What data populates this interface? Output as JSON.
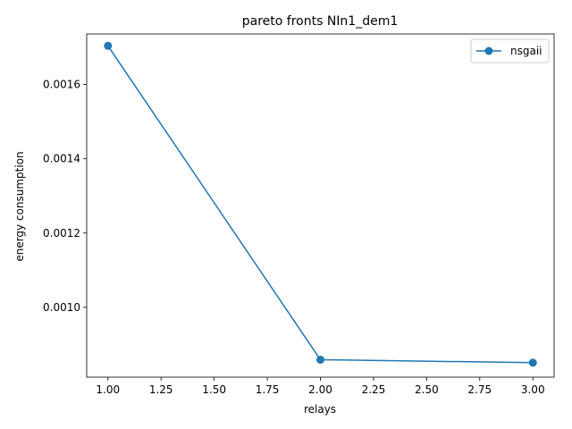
{
  "chart_data": {
    "type": "line",
    "title": "pareto fronts NIn1_dem1",
    "xlabel": "relays",
    "ylabel": "energy consumption",
    "xlim": [
      0.9,
      3.1
    ],
    "ylim": [
      0.000812,
      0.001736
    ],
    "xticks": [
      1.0,
      1.25,
      1.5,
      1.75,
      2.0,
      2.25,
      2.5,
      2.75,
      3.0
    ],
    "xtick_labels": [
      "1.00",
      "1.25",
      "1.50",
      "1.75",
      "2.00",
      "2.25",
      "2.50",
      "2.75",
      "3.00"
    ],
    "yticks": [
      0.001,
      0.0012,
      0.0014,
      0.0016
    ],
    "ytick_labels": [
      "0.0010",
      "0.0012",
      "0.0014",
      "0.0016"
    ],
    "grid": false,
    "legend_position": "top-right",
    "series": [
      {
        "name": "nsgaii",
        "color": "#1f77b4",
        "marker": "circle",
        "x": [
          1.0,
          2.0,
          3.0
        ],
        "y": [
          0.001704,
          0.000859,
          0.000851
        ]
      }
    ]
  }
}
